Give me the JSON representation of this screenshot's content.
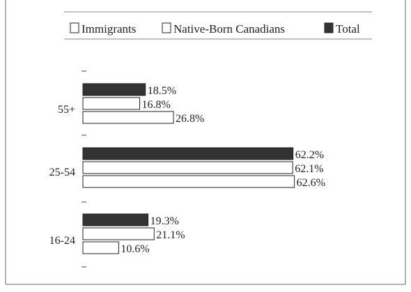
{
  "chart_data": {
    "type": "bar",
    "orientation": "horizontal",
    "categories": [
      "55+",
      "25-54",
      "16-24"
    ],
    "series": [
      {
        "name": "Total",
        "values": [
          18.5,
          62.2,
          19.3
        ],
        "color": "#333333"
      },
      {
        "name": "Native-Born Canadians",
        "values": [
          16.8,
          62.1,
          21.1
        ],
        "color": "#ffffff"
      },
      {
        "name": "Immigrants",
        "values": [
          26.8,
          62.6,
          10.6
        ],
        "color": "#ffffff"
      }
    ],
    "value_labels": [
      [
        "18.5%",
        "16.8%",
        "26.8%"
      ],
      [
        "62.2%",
        "62.1%",
        "62.6%"
      ],
      [
        "19.3%",
        "21.1%",
        "10.6%"
      ]
    ],
    "legend": {
      "position": "top",
      "entries": [
        {
          "label": "Immigrants",
          "color": "#ffffff"
        },
        {
          "label": "Native-Born Canadians",
          "color": "#ffffff"
        },
        {
          "label": "Total",
          "color": "#333333"
        }
      ]
    },
    "title": "",
    "xlabel": "",
    "ylabel": "",
    "xlim": [
      0,
      65
    ],
    "grid": false
  }
}
